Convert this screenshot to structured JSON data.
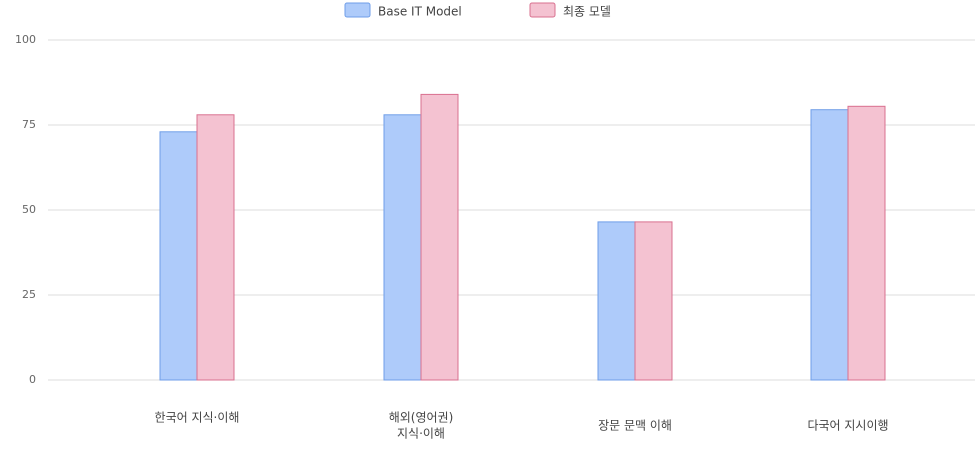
{
  "chart_data": {
    "type": "bar",
    "categories": [
      "한국어 지식·이해",
      [
        "해외(영어권)",
        "지식·이해"
      ],
      "장문 문맥 이해",
      "다국어 지시이행"
    ],
    "series": [
      {
        "name": "Base IT Model",
        "color": "#aecbfa",
        "values": [
          73,
          78,
          46.5,
          79.5
        ]
      },
      {
        "name": "최종 모델",
        "color": "#f4c2d1",
        "values": [
          78,
          84,
          46.5,
          80.5
        ]
      }
    ],
    "ylim": [
      0,
      100
    ],
    "yticks": [
      0,
      25,
      50,
      75,
      100
    ],
    "grid": true
  }
}
